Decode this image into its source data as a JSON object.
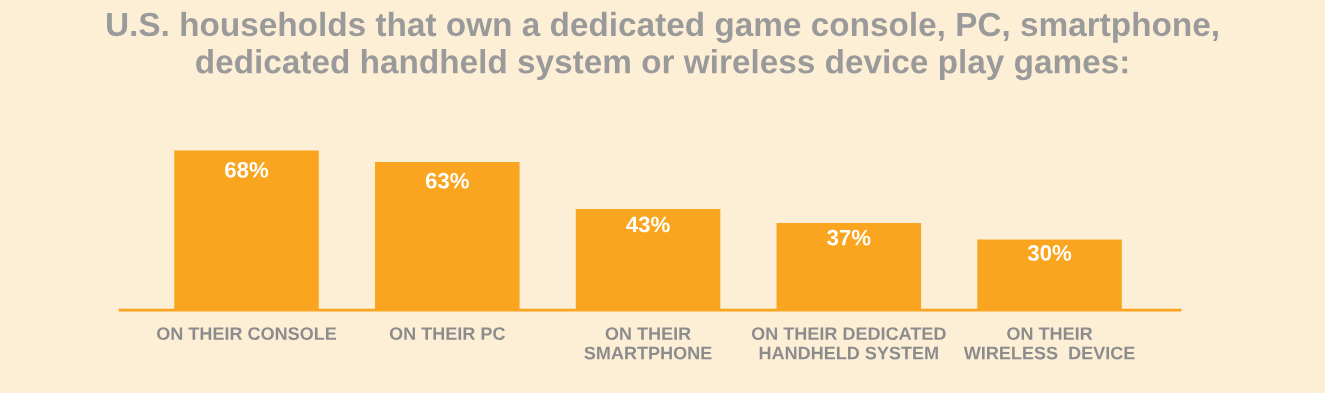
{
  "chart_data": {
    "type": "bar",
    "title": "U.S. households that own a dedicated game console, PC, smartphone,\ndedicated handheld system or wireless device play games:",
    "categories": [
      "ON THEIR CONSOLE",
      "ON THEIR PC",
      "ON THEIR\nSMARTPHONE",
      "ON THEIR DEDICATED\nHANDHELD SYSTEM",
      "ON THEIR\nWIRELESS  DEVICE"
    ],
    "values": [
      68,
      63,
      43,
      37,
      30
    ],
    "value_labels": [
      "68%",
      "63%",
      "43%",
      "37%",
      "30%"
    ],
    "color": "#f9a51f",
    "grid": false
  }
}
